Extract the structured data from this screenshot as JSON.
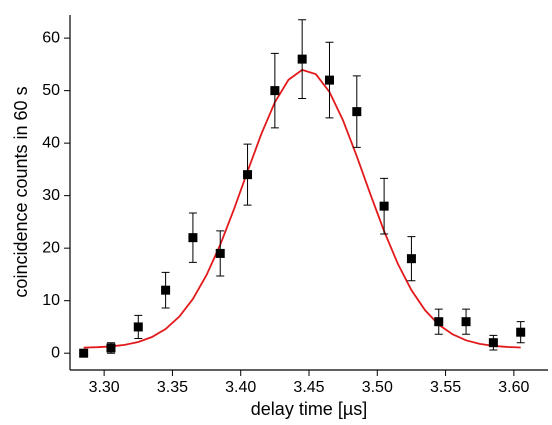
{
  "chart_data": {
    "type": "scatter",
    "x_label": "delay time [µs]",
    "y_label": "coincidence counts in 60 s",
    "xlim": [
      3.275,
      3.625
    ],
    "ylim": [
      -3.2,
      64.4
    ],
    "xticks": [
      {
        "value": 3.3,
        "label": "3.30"
      },
      {
        "value": 3.35,
        "label": "3.35"
      },
      {
        "value": 3.4,
        "label": "3.40"
      },
      {
        "value": 3.45,
        "label": "3.45"
      },
      {
        "value": 3.5,
        "label": "3.50"
      },
      {
        "value": 3.55,
        "label": "3.55"
      },
      {
        "value": 3.6,
        "label": "3.60"
      }
    ],
    "yticks": [
      0,
      10,
      20,
      30,
      40,
      50,
      60
    ],
    "series": [
      {
        "color": "#000000",
        "x": [
          3.285,
          3.305,
          3.325,
          3.345,
          3.365,
          3.385,
          3.405,
          3.425,
          3.445,
          3.465,
          3.485,
          3.505,
          3.525,
          3.545,
          3.565,
          3.585,
          3.605
        ],
        "values": [
          0,
          1,
          5,
          12,
          22,
          19,
          34,
          50,
          56,
          52,
          46,
          28,
          18,
          6,
          6,
          2,
          4
        ],
        "errors": [
          0,
          1,
          2.2,
          3.4,
          4.7,
          4.3,
          5.8,
          7.1,
          7.5,
          7.2,
          6.8,
          5.3,
          4.2,
          2.4,
          2.4,
          1.4,
          2
        ]
      }
    ],
    "fit": {
      "color": "#e31a1c",
      "x": [
        3.285,
        3.295,
        3.305,
        3.315,
        3.325,
        3.335,
        3.345,
        3.355,
        3.365,
        3.375,
        3.385,
        3.395,
        3.405,
        3.415,
        3.425,
        3.435,
        3.445,
        3.455,
        3.465,
        3.475,
        3.485,
        3.495,
        3.505,
        3.515,
        3.525,
        3.535,
        3.545,
        3.555,
        3.565,
        3.575,
        3.585,
        3.595,
        3.605
      ],
      "values": [
        1.06,
        1.14,
        1.29,
        1.59,
        2.13,
        3.08,
        4.61,
        6.96,
        10.33,
        14.9,
        20.64,
        27.37,
        34.6,
        41.68,
        47.77,
        52.07,
        53.95,
        53.13,
        49.74,
        44.28,
        37.5,
        30.23,
        23.23,
        17.06,
        12.01,
        8.17,
        5.44,
        3.61,
        2.45,
        1.77,
        1.39,
        1.19,
        1.08
      ]
    }
  }
}
